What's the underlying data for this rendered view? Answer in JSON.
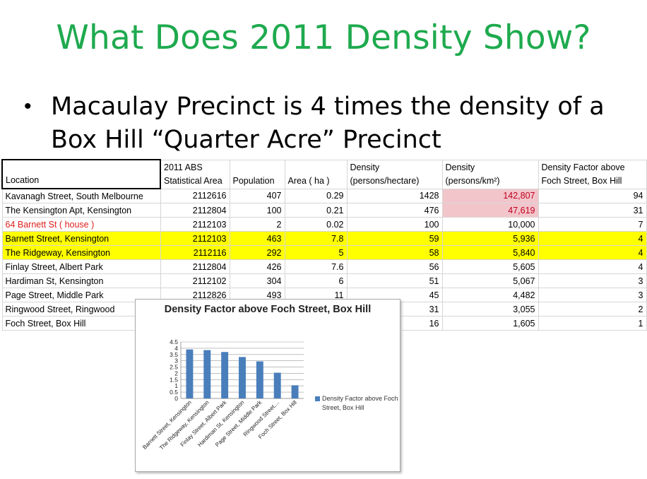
{
  "slide": {
    "title": "What Does 2011 Density Show?",
    "bullet_symbol": "•",
    "bullet_text": "Macaulay Precinct is 4 times the density of a Box Hill “Quarter Acre” Precinct"
  },
  "table": {
    "headers": {
      "location": "Location",
      "sa_line1": "2011 ABS",
      "sa_line2": "Statistical Area",
      "population": "Population",
      "area": "Area ( ha )",
      "density_ha_line1": "Density",
      "density_ha_line2": "(persons/hectare)",
      "density_km_line1": "Density",
      "density_km_line2": "(persons/km²)",
      "factor_line1": "Density Factor above",
      "factor_line2": "Foch Street, Box Hill"
    },
    "rows": [
      {
        "location": "Kavanagh Street, South Melbourne",
        "sa": "2112616",
        "population": "407",
        "area": "0.29",
        "density_ha": "1428",
        "density_km": "142,807",
        "factor": "94"
      },
      {
        "location": "The Kensington Apt, Kensington",
        "sa": "2112804",
        "population": "100",
        "area": "0.21",
        "density_ha": "476",
        "density_km": "47,619",
        "factor": "31"
      },
      {
        "location": "64 Barnett St ( house )",
        "sa": "2112103",
        "population": "2",
        "area": "0.02",
        "density_ha": "100",
        "density_km": "10,000",
        "factor": "7"
      },
      {
        "location": "Barnett Street, Kensington",
        "sa": "2112103",
        "population": "463",
        "area": "7.8",
        "density_ha": "59",
        "density_km": "5,936",
        "factor": "4"
      },
      {
        "location": "The Ridgeway, Kensington",
        "sa": "2112116",
        "population": "292",
        "area": "5",
        "density_ha": "58",
        "density_km": "5,840",
        "factor": "4"
      },
      {
        "location": "Finlay Street, Albert Park",
        "sa": "2112804",
        "population": "426",
        "area": "7.6",
        "density_ha": "56",
        "density_km": "5,605",
        "factor": "4"
      },
      {
        "location": "Hardiman St, Kensington",
        "sa": "2112102",
        "population": "304",
        "area": "6",
        "density_ha": "51",
        "density_km": "5,067",
        "factor": "3"
      },
      {
        "location": "Page Street, Middle Park",
        "sa": "2112826",
        "population": "493",
        "area": "11",
        "density_ha": "45",
        "density_km": "4,482",
        "factor": "3"
      },
      {
        "location": "Ringwood Street, Ringwood",
        "sa": "",
        "population": "",
        "area": "",
        "density_ha": "31",
        "density_km": "3,055",
        "factor": "2"
      },
      {
        "location": "Foch Street, Box Hill",
        "sa": "",
        "population": "",
        "area": "",
        "density_ha": "16",
        "density_km": "1,605",
        "factor": "1"
      }
    ]
  },
  "colors": {
    "title_green": "#1eaa4e",
    "highlight_yellow": "#ffff00",
    "highlight_pink": "#f2c5cb",
    "red_text": "#e0201c",
    "bar_blue": "#4a7ebb"
  },
  "chart_data": {
    "type": "bar",
    "title": "Density Factor above Foch Street, Box Hill",
    "categories": [
      "Barnett Street, Kensington",
      "The Ridgeway, Kensington",
      "Finlay Street, Albert Park",
      "Hardiman St, Kensington",
      "Page Street, Middle Park",
      "Ringwood Street,...",
      "Foch Street, Box Hill"
    ],
    "series": [
      {
        "name": "Density Factor above Foch Street, Box Hill",
        "values": [
          3.9,
          3.85,
          3.7,
          3.3,
          2.95,
          2.05,
          1.05
        ]
      }
    ],
    "ylim": [
      0,
      4.5
    ],
    "yticks": [
      "0",
      "0.5",
      "1",
      "1.5",
      "2",
      "2.5",
      "3",
      "3.5",
      "4",
      "4.5"
    ],
    "grid": true,
    "legend": "right"
  }
}
